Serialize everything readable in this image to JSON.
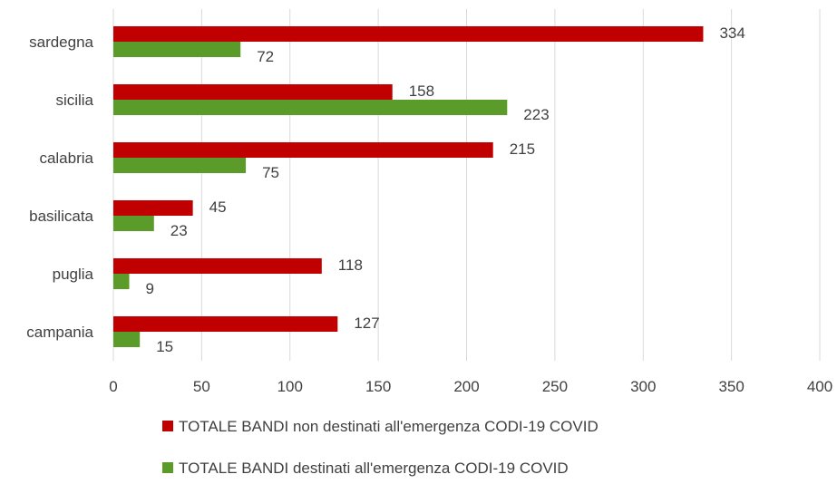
{
  "chart_data": {
    "type": "bar",
    "orientation": "horizontal",
    "categories": [
      "sardegna",
      "sicilia",
      "calabria",
      "basilicata",
      "puglia",
      "campania"
    ],
    "series": [
      {
        "name": "TOTALE BANDI non destinati all'emergenza CODI-19 COVID",
        "color": "#c00000",
        "values": [
          334,
          158,
          215,
          45,
          118,
          127
        ]
      },
      {
        "name": "TOTALE BANDI destinati all'emergenza CODI-19 COVID",
        "color": "#5b9b2a",
        "values": [
          72,
          223,
          75,
          23,
          9,
          15
        ]
      }
    ],
    "xlim": [
      0,
      400
    ],
    "xticks": [
      0,
      50,
      100,
      150,
      200,
      250,
      300,
      350,
      400
    ],
    "grid": true,
    "legend_position": "bottom",
    "data_labels": true
  }
}
